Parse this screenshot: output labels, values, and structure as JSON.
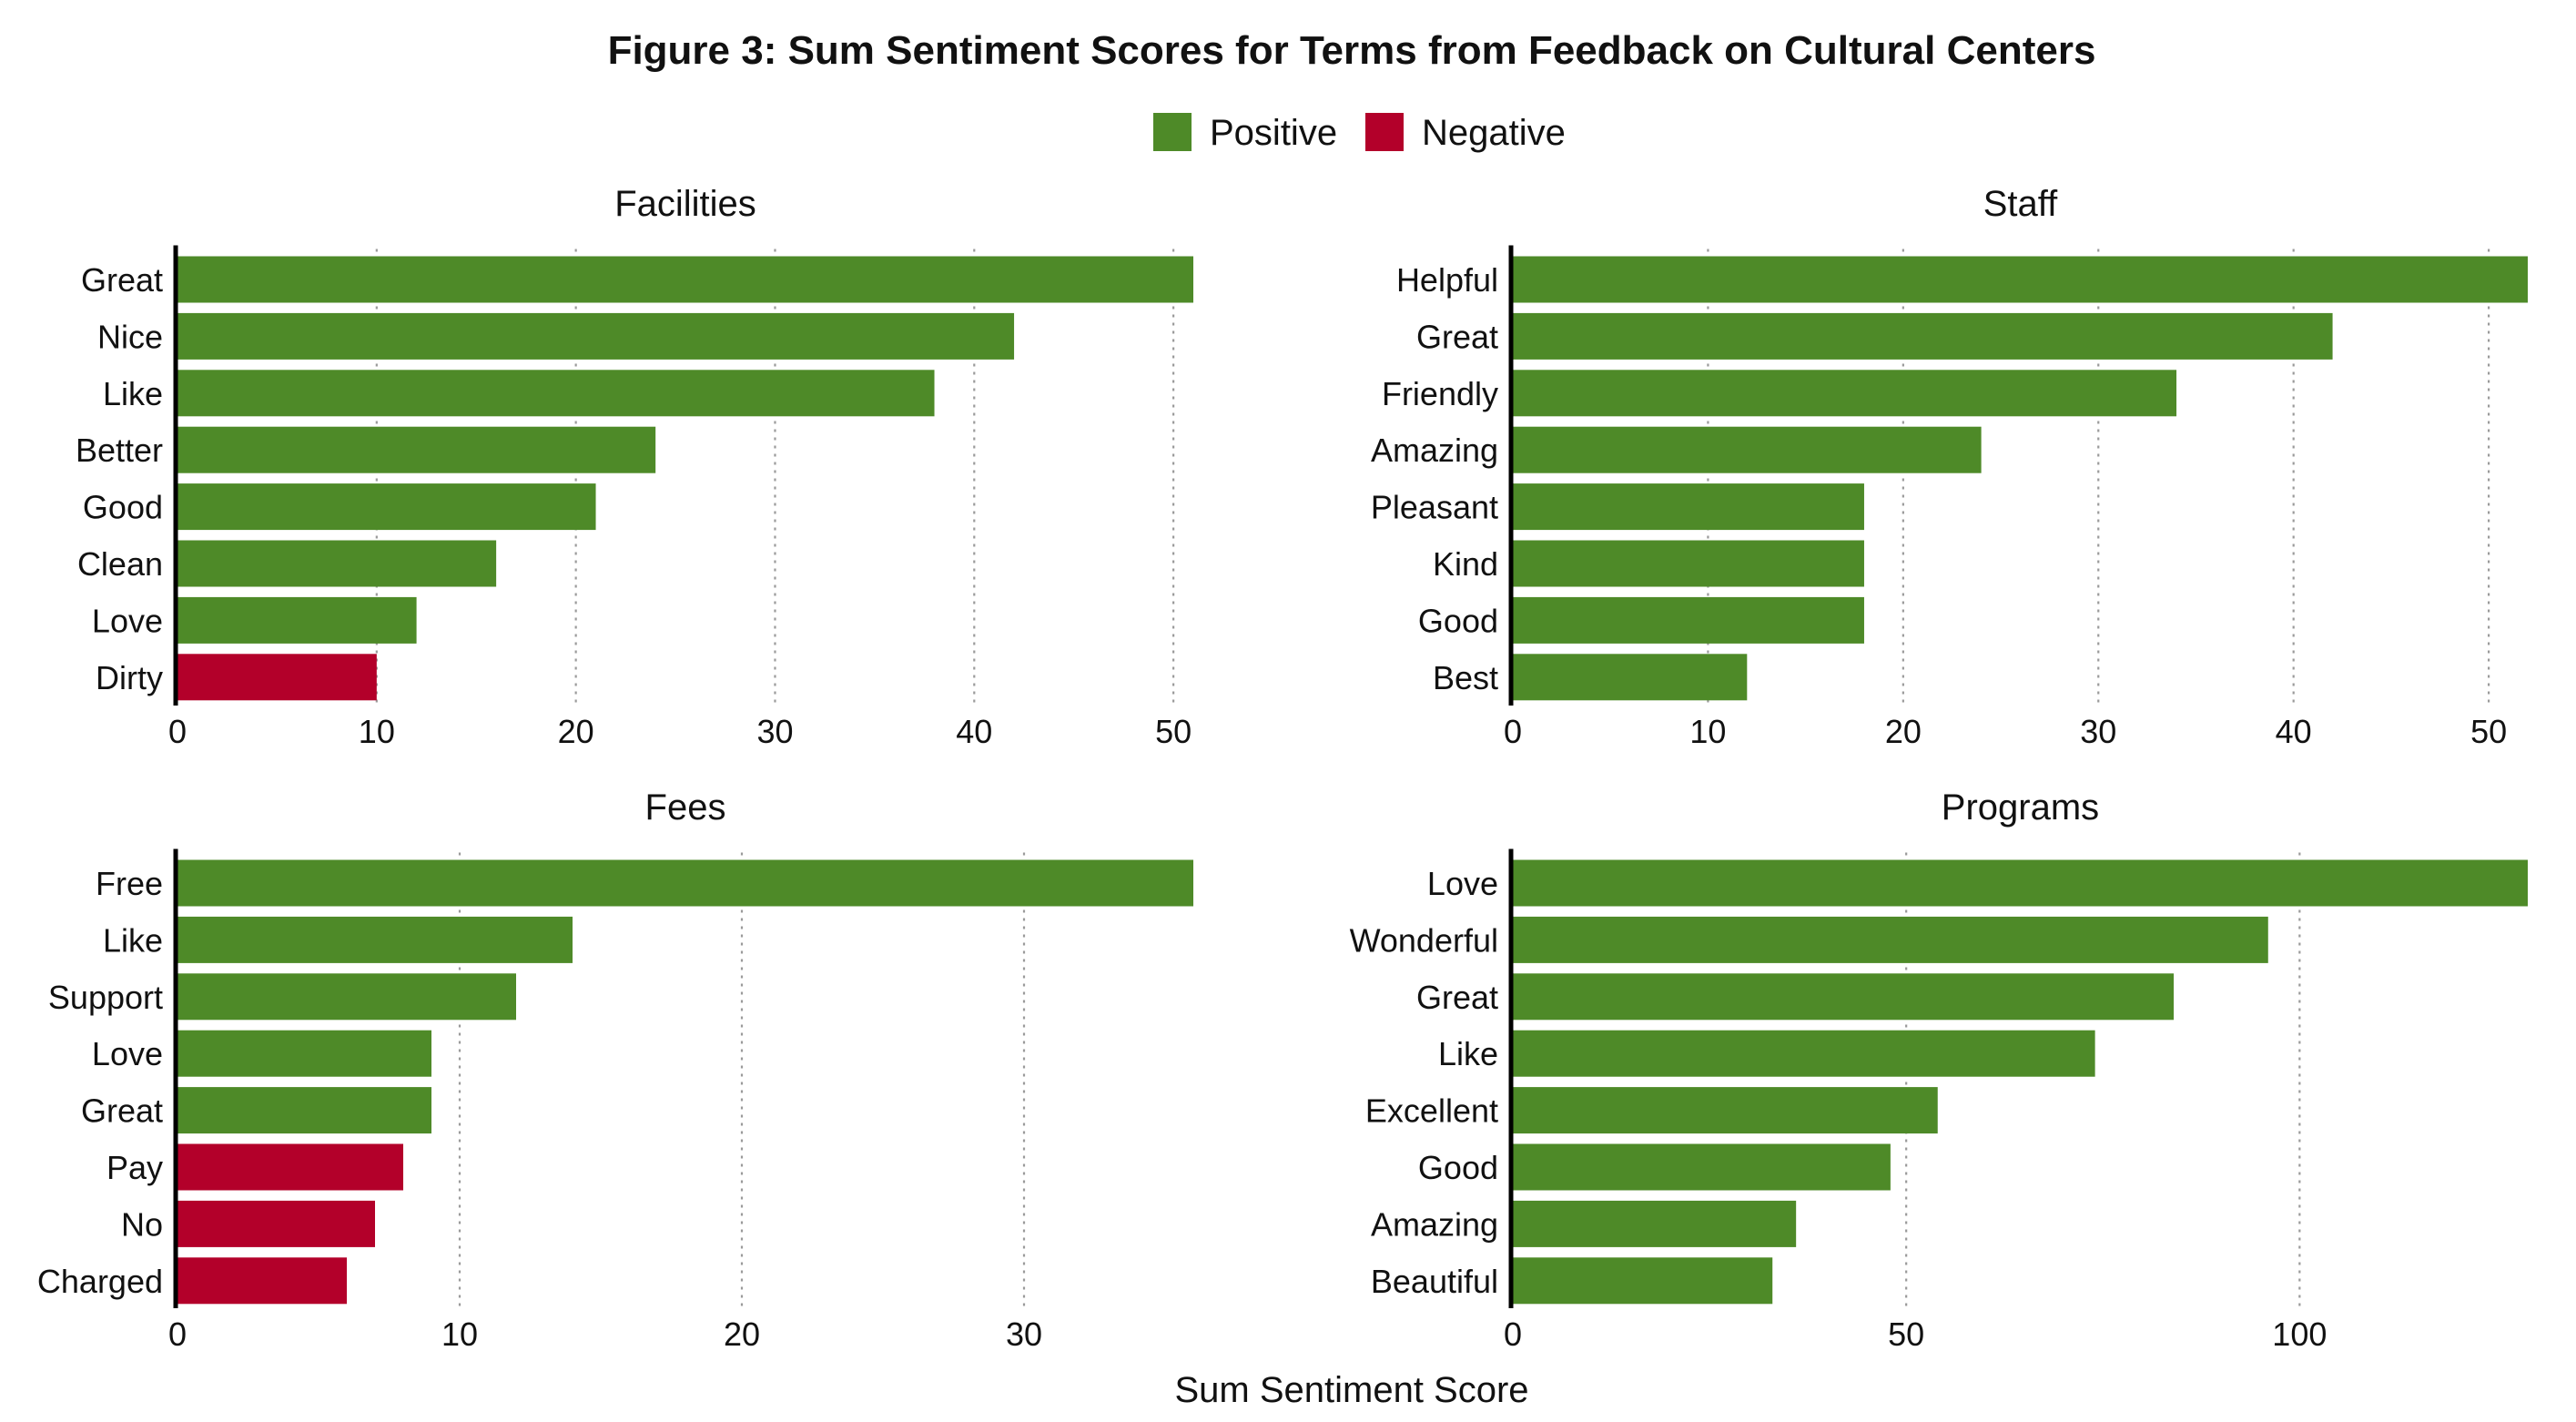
{
  "title": "Figure 3: Sum Sentiment Scores for Terms from Feedback on Cultural Centers",
  "xlabel": "Sum Sentiment Score",
  "legend": [
    {
      "label": "Positive",
      "color": "#4e8a28"
    },
    {
      "label": "Negative",
      "color": "#b3002a"
    }
  ],
  "colors": {
    "Positive": "#4e8a28",
    "Negative": "#b3002a"
  },
  "chart_data": [
    {
      "type": "bar",
      "orientation": "horizontal",
      "title": "Facilities",
      "xlim": [
        0,
        51
      ],
      "ticks": [
        0,
        10,
        20,
        30,
        40,
        50
      ],
      "grid": true,
      "bars": [
        {
          "label": "Great",
          "value": 51,
          "sentiment": "Positive"
        },
        {
          "label": "Nice",
          "value": 42,
          "sentiment": "Positive"
        },
        {
          "label": "Like",
          "value": 38,
          "sentiment": "Positive"
        },
        {
          "label": "Better",
          "value": 24,
          "sentiment": "Positive"
        },
        {
          "label": "Good",
          "value": 21,
          "sentiment": "Positive"
        },
        {
          "label": "Clean",
          "value": 16,
          "sentiment": "Positive"
        },
        {
          "label": "Love",
          "value": 12,
          "sentiment": "Positive"
        },
        {
          "label": "Dirty",
          "value": 10,
          "sentiment": "Negative"
        }
      ]
    },
    {
      "type": "bar",
      "orientation": "horizontal",
      "title": "Staff",
      "xlim": [
        0,
        52
      ],
      "ticks": [
        0,
        10,
        20,
        30,
        40,
        50
      ],
      "grid": true,
      "bars": [
        {
          "label": "Helpful",
          "value": 52,
          "sentiment": "Positive"
        },
        {
          "label": "Great",
          "value": 42,
          "sentiment": "Positive"
        },
        {
          "label": "Friendly",
          "value": 34,
          "sentiment": "Positive"
        },
        {
          "label": "Amazing",
          "value": 24,
          "sentiment": "Positive"
        },
        {
          "label": "Pleasant",
          "value": 18,
          "sentiment": "Positive"
        },
        {
          "label": "Kind",
          "value": 18,
          "sentiment": "Positive"
        },
        {
          "label": "Good",
          "value": 18,
          "sentiment": "Positive"
        },
        {
          "label": "Best",
          "value": 12,
          "sentiment": "Positive"
        }
      ]
    },
    {
      "type": "bar",
      "orientation": "horizontal",
      "title": "Fees",
      "xlim": [
        0,
        36
      ],
      "ticks": [
        0,
        10,
        20,
        30
      ],
      "grid": true,
      "bars": [
        {
          "label": "Free",
          "value": 36,
          "sentiment": "Positive"
        },
        {
          "label": "Like",
          "value": 14,
          "sentiment": "Positive"
        },
        {
          "label": "Support",
          "value": 12,
          "sentiment": "Positive"
        },
        {
          "label": "Love",
          "value": 9,
          "sentiment": "Positive"
        },
        {
          "label": "Great",
          "value": 9,
          "sentiment": "Positive"
        },
        {
          "label": "Pay",
          "value": 8,
          "sentiment": "Negative"
        },
        {
          "label": "No",
          "value": 7,
          "sentiment": "Negative"
        },
        {
          "label": "Charged",
          "value": 6,
          "sentiment": "Negative"
        }
      ]
    },
    {
      "type": "bar",
      "orientation": "horizontal",
      "title": "Programs",
      "xlim": [
        0,
        129
      ],
      "ticks": [
        0,
        50,
        100
      ],
      "grid": true,
      "bars": [
        {
          "label": "Love",
          "value": 129,
          "sentiment": "Positive"
        },
        {
          "label": "Wonderful",
          "value": 96,
          "sentiment": "Positive"
        },
        {
          "label": "Great",
          "value": 84,
          "sentiment": "Positive"
        },
        {
          "label": "Like",
          "value": 74,
          "sentiment": "Positive"
        },
        {
          "label": "Excellent",
          "value": 54,
          "sentiment": "Positive"
        },
        {
          "label": "Good",
          "value": 48,
          "sentiment": "Positive"
        },
        {
          "label": "Amazing",
          "value": 36,
          "sentiment": "Positive"
        },
        {
          "label": "Beautiful",
          "value": 33,
          "sentiment": "Positive"
        }
      ]
    }
  ]
}
